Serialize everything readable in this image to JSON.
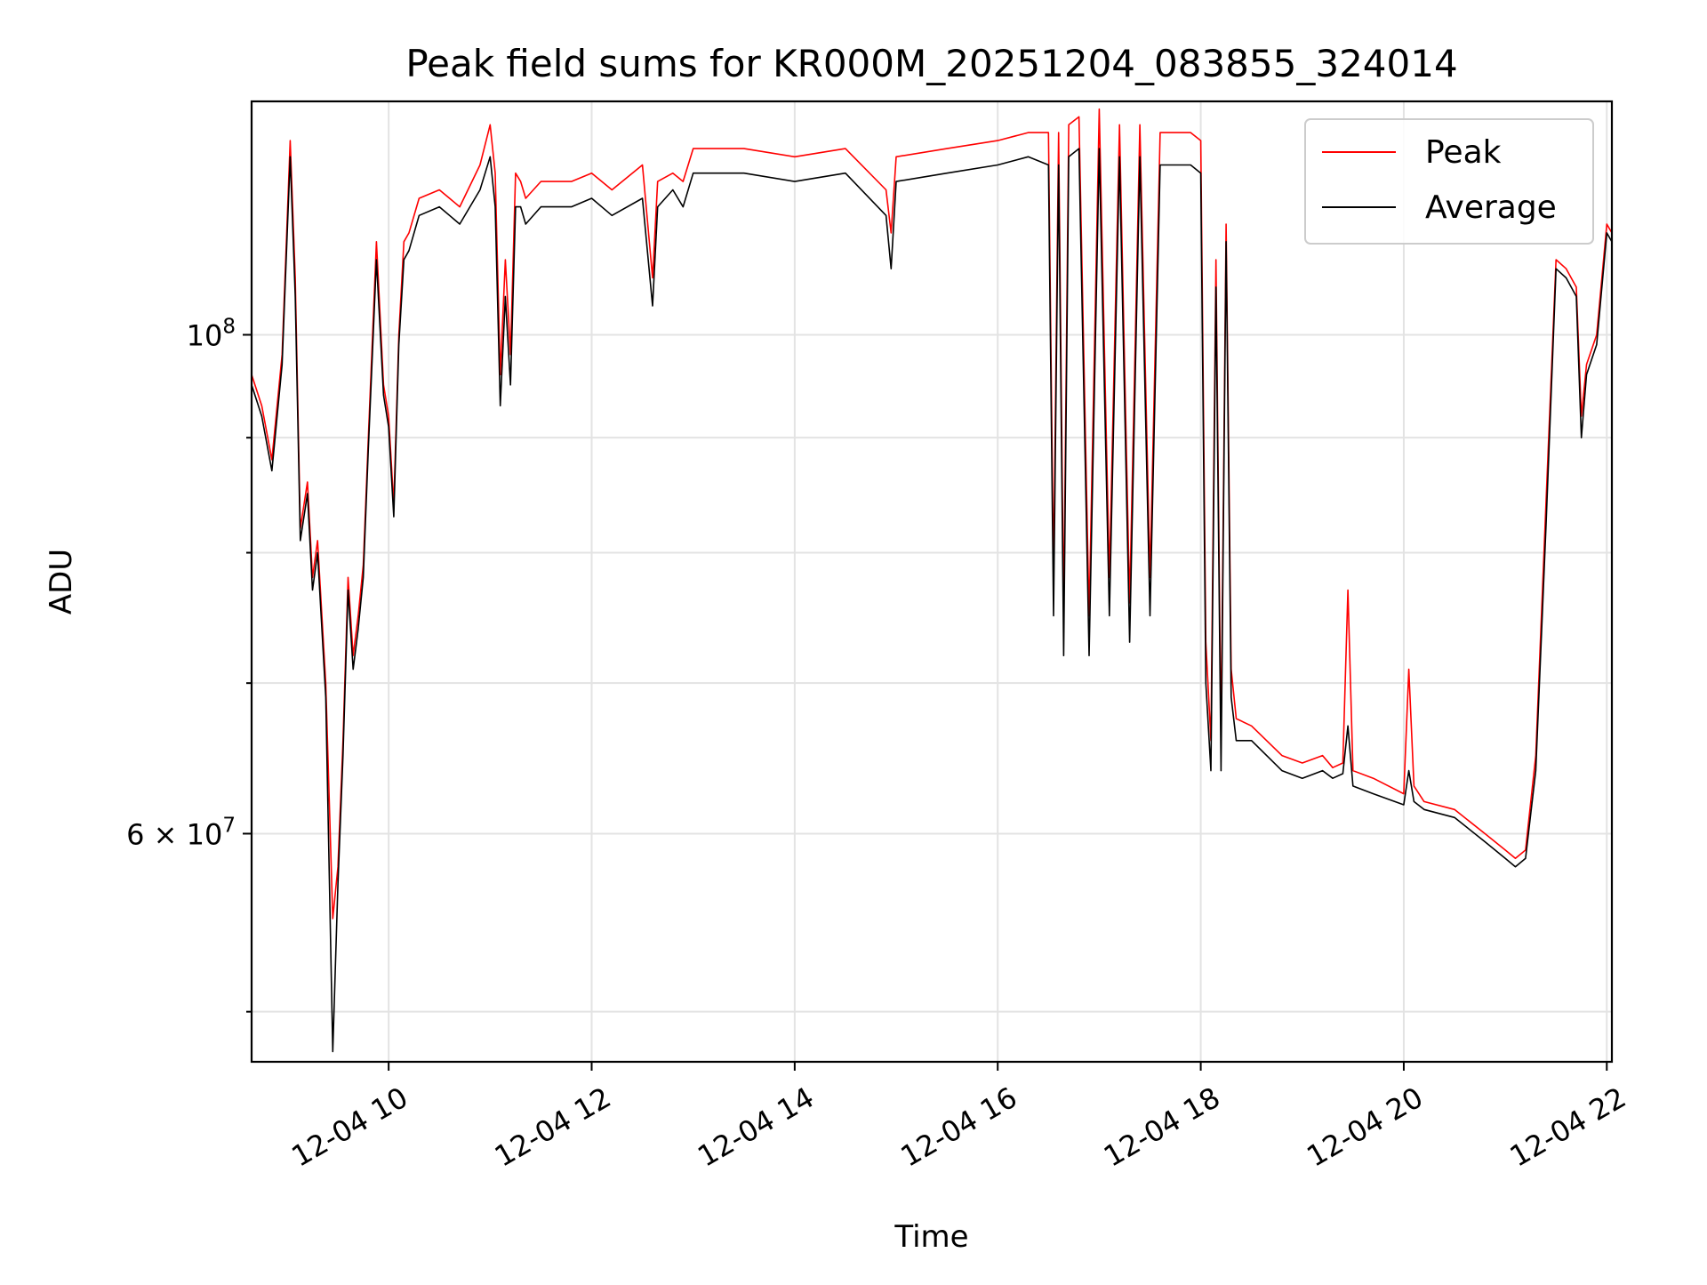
{
  "chart_data": {
    "type": "line",
    "title": "Peak field sums for KR000M_20251204_083855_324014",
    "xlabel": "Time",
    "ylabel": "ADU",
    "yscale": "log",
    "xlim": [
      8.65,
      22.05
    ],
    "ylim": [
      47500000,
      127000000
    ],
    "x_ticks": [
      {
        "value": 10,
        "label": "12-04 10"
      },
      {
        "value": 12,
        "label": "12-04 12"
      },
      {
        "value": 14,
        "label": "12-04 14"
      },
      {
        "value": 16,
        "label": "12-04 16"
      },
      {
        "value": 18,
        "label": "12-04 18"
      },
      {
        "value": 20,
        "label": "12-04 20"
      },
      {
        "value": 22,
        "label": "12-04 22"
      }
    ],
    "y_major_ticks": [
      {
        "value": 100000000,
        "base": "10",
        "exp": "8"
      },
      {
        "value": 60000000,
        "base": "6 × 10",
        "exp": "7"
      }
    ],
    "y_minor_ticks": [
      50000000,
      70000000,
      80000000,
      90000000
    ],
    "grid": true,
    "legend": {
      "position": "top-right",
      "entries": [
        {
          "name": "Peak",
          "color": "#ff0000"
        },
        {
          "name": "Average",
          "color": "#000000"
        }
      ]
    },
    "series": [
      {
        "name": "Peak",
        "color": "#ff0000",
        "x": [
          8.65,
          8.75,
          8.85,
          8.95,
          9.03,
          9.08,
          9.13,
          9.2,
          9.25,
          9.3,
          9.38,
          9.45,
          9.5,
          9.55,
          9.6,
          9.65,
          9.7,
          9.75,
          9.8,
          9.88,
          9.95,
          10.0,
          10.05,
          10.1,
          10.15,
          10.2,
          10.3,
          10.5,
          10.7,
          10.9,
          11.0,
          11.05,
          11.1,
          11.15,
          11.2,
          11.25,
          11.3,
          11.35,
          11.5,
          11.8,
          12.0,
          12.2,
          12.5,
          12.6,
          12.65,
          12.8,
          12.9,
          13.0,
          13.5,
          14.0,
          14.5,
          14.9,
          14.95,
          15.0,
          15.5,
          16.0,
          16.3,
          16.5,
          16.55,
          16.6,
          16.65,
          16.7,
          16.8,
          16.9,
          17.0,
          17.1,
          17.2,
          17.3,
          17.4,
          17.5,
          17.6,
          17.7,
          17.8,
          17.9,
          18.0,
          18.05,
          18.1,
          18.15,
          18.2,
          18.25,
          18.3,
          18.35,
          18.5,
          18.8,
          19.0,
          19.2,
          19.3,
          19.4,
          19.45,
          19.5,
          19.7,
          20.0,
          20.05,
          20.1,
          20.2,
          20.5,
          20.8,
          21.0,
          21.1,
          21.2,
          21.3,
          21.4,
          21.5,
          21.6,
          21.7,
          21.75,
          21.8,
          21.9,
          22.0,
          22.05
        ],
        "y": [
          96000000,
          93000000,
          88000000,
          98000000,
          122000000,
          106000000,
          82000000,
          86000000,
          78000000,
          81000000,
          70000000,
          55000000,
          58000000,
          66000000,
          78000000,
          72000000,
          75000000,
          79000000,
          90000000,
          110000000,
          95000000,
          92000000,
          84000000,
          100000000,
          110000000,
          111000000,
          115000000,
          116000000,
          114000000,
          119000000,
          124000000,
          118000000,
          96000000,
          108000000,
          98000000,
          118000000,
          117000000,
          115000000,
          117000000,
          117000000,
          118000000,
          116000000,
          119000000,
          106000000,
          117000000,
          118000000,
          117000000,
          121000000,
          121000000,
          120000000,
          121000000,
          116000000,
          111000000,
          120000000,
          121000000,
          122000000,
          123000000,
          123000000,
          78000000,
          123000000,
          75000000,
          124000000,
          125000000,
          75000000,
          126000000,
          78000000,
          124000000,
          76000000,
          124000000,
          78000000,
          123000000,
          123000000,
          123000000,
          123000000,
          122000000,
          73000000,
          66000000,
          108000000,
          66000000,
          112000000,
          71000000,
          67500000,
          67000000,
          65000000,
          64500000,
          65000000,
          64200000,
          64500000,
          77000000,
          64000000,
          63500000,
          62500000,
          71000000,
          63000000,
          62000000,
          61500000,
          60000000,
          59000000,
          58500000,
          59000000,
          65000000,
          84000000,
          108000000,
          107000000,
          105000000,
          92000000,
          97000000,
          100000000,
          112000000,
          111000000
        ]
      },
      {
        "name": "Average",
        "color": "#000000",
        "x": [
          8.65,
          8.75,
          8.85,
          8.95,
          9.03,
          9.08,
          9.13,
          9.2,
          9.25,
          9.3,
          9.38,
          9.45,
          9.5,
          9.55,
          9.6,
          9.65,
          9.7,
          9.75,
          9.8,
          9.88,
          9.95,
          10.0,
          10.05,
          10.1,
          10.15,
          10.2,
          10.3,
          10.5,
          10.7,
          10.9,
          11.0,
          11.05,
          11.1,
          11.15,
          11.2,
          11.25,
          11.3,
          11.35,
          11.5,
          11.8,
          12.0,
          12.2,
          12.5,
          12.6,
          12.65,
          12.8,
          12.9,
          13.0,
          13.5,
          14.0,
          14.5,
          14.9,
          14.95,
          15.0,
          15.5,
          16.0,
          16.3,
          16.5,
          16.55,
          16.6,
          16.65,
          16.7,
          16.8,
          16.9,
          17.0,
          17.1,
          17.2,
          17.3,
          17.4,
          17.5,
          17.6,
          17.7,
          17.8,
          17.9,
          18.0,
          18.05,
          18.1,
          18.15,
          18.2,
          18.25,
          18.3,
          18.35,
          18.5,
          18.8,
          19.0,
          19.2,
          19.3,
          19.4,
          19.45,
          19.5,
          19.7,
          20.0,
          20.05,
          20.1,
          20.2,
          20.5,
          20.8,
          21.0,
          21.1,
          21.2,
          21.3,
          21.4,
          21.5,
          21.6,
          21.7,
          21.75,
          21.8,
          21.9,
          22.0,
          22.05
        ],
        "y": [
          95000000,
          92000000,
          87000000,
          97000000,
          120000000,
          104000000,
          81000000,
          85000000,
          77000000,
          80000000,
          69000000,
          48000000,
          57000000,
          65000000,
          77000000,
          71000000,
          74000000,
          78000000,
          89000000,
          108000000,
          94000000,
          91000000,
          83000000,
          99000000,
          108000000,
          109000000,
          113000000,
          114000000,
          112000000,
          116000000,
          120000000,
          114000000,
          93000000,
          104000000,
          95000000,
          114000000,
          114000000,
          112000000,
          114000000,
          114000000,
          115000000,
          113000000,
          115000000,
          103000000,
          114000000,
          116000000,
          114000000,
          118000000,
          118000000,
          117000000,
          118000000,
          113000000,
          107000000,
          117000000,
          118000000,
          119000000,
          120000000,
          119000000,
          75000000,
          119000000,
          72000000,
          120000000,
          121000000,
          72000000,
          121000000,
          75000000,
          120000000,
          73000000,
          120000000,
          75000000,
          119000000,
          119000000,
          119000000,
          119000000,
          118000000,
          70000000,
          64000000,
          105000000,
          64000000,
          110000000,
          69000000,
          66000000,
          66000000,
          64000000,
          63500000,
          64000000,
          63500000,
          63800000,
          67000000,
          63000000,
          62500000,
          61800000,
          64000000,
          62000000,
          61500000,
          61000000,
          59500000,
          58500000,
          58000000,
          58500000,
          64000000,
          82000000,
          107000000,
          106000000,
          104000000,
          90000000,
          96000000,
          99000000,
          111000000,
          110000000
        ]
      }
    ]
  }
}
